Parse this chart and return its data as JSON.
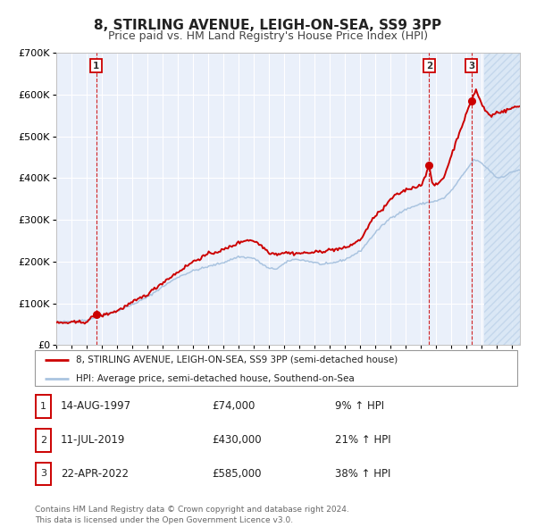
{
  "title": "8, STIRLING AVENUE, LEIGH-ON-SEA, SS9 3PP",
  "subtitle": "Price paid vs. HM Land Registry's House Price Index (HPI)",
  "ylim": [
    0,
    700000
  ],
  "xlim_start": 1995.0,
  "xlim_end": 2025.5,
  "yticks": [
    0,
    100000,
    200000,
    300000,
    400000,
    500000,
    600000,
    700000
  ],
  "ytick_labels": [
    "£0",
    "£100K",
    "£200K",
    "£300K",
    "£400K",
    "£500K",
    "£600K",
    "£700K"
  ],
  "background_color": "#ffffff",
  "plot_bg_color": "#eaf0fa",
  "grid_color": "#ffffff",
  "sale_color": "#cc0000",
  "hpi_color": "#aac4e0",
  "title_fontsize": 11,
  "subtitle_fontsize": 9,
  "tick_fontsize": 7,
  "ytick_fontsize": 8,
  "legend_label_sale": "8, STIRLING AVENUE, LEIGH-ON-SEA, SS9 3PP (semi-detached house)",
  "legend_label_hpi": "HPI: Average price, semi-detached house, Southend-on-Sea",
  "transactions": [
    {
      "label": "1",
      "date": 1997.617,
      "price": 74000,
      "pct": "9%",
      "date_str": "14-AUG-1997"
    },
    {
      "label": "2",
      "date": 2019.525,
      "price": 430000,
      "pct": "21%",
      "date_str": "11-JUL-2019"
    },
    {
      "label": "3",
      "date": 2022.308,
      "price": 585000,
      "pct": "38%",
      "date_str": "22-APR-2022"
    }
  ],
  "footer": "Contains HM Land Registry data © Crown copyright and database right 2024.\nThis data is licensed under the Open Government Licence v3.0.",
  "hpi_base": [
    [
      1995.0,
      55000
    ],
    [
      1996.0,
      57000
    ],
    [
      1997.0,
      60000
    ],
    [
      1998.0,
      72000
    ],
    [
      1999.0,
      82000
    ],
    [
      2000.0,
      97000
    ],
    [
      2001.0,
      115000
    ],
    [
      2002.0,
      140000
    ],
    [
      2003.0,
      163000
    ],
    [
      2004.0,
      178000
    ],
    [
      2005.0,
      188000
    ],
    [
      2006.0,
      198000
    ],
    [
      2007.0,
      212000
    ],
    [
      2008.0,
      208000
    ],
    [
      2008.5,
      195000
    ],
    [
      2009.0,
      183000
    ],
    [
      2009.5,
      183000
    ],
    [
      2010.0,
      195000
    ],
    [
      2010.5,
      205000
    ],
    [
      2011.0,
      205000
    ],
    [
      2012.0,
      198000
    ],
    [
      2012.5,
      193000
    ],
    [
      2013.0,
      195000
    ],
    [
      2014.0,
      205000
    ],
    [
      2015.0,
      225000
    ],
    [
      2016.0,
      270000
    ],
    [
      2016.5,
      288000
    ],
    [
      2017.0,
      305000
    ],
    [
      2017.5,
      315000
    ],
    [
      2018.0,
      325000
    ],
    [
      2018.5,
      332000
    ],
    [
      2019.0,
      338000
    ],
    [
      2019.5,
      342000
    ],
    [
      2020.0,
      345000
    ],
    [
      2020.5,
      352000
    ],
    [
      2021.0,
      370000
    ],
    [
      2021.5,
      395000
    ],
    [
      2022.0,
      420000
    ],
    [
      2022.5,
      445000
    ],
    [
      2023.0,
      435000
    ],
    [
      2023.3,
      425000
    ],
    [
      2023.6,
      415000
    ],
    [
      2024.0,
      400000
    ],
    [
      2024.5,
      405000
    ],
    [
      2025.0,
      415000
    ],
    [
      2025.5,
      420000
    ]
  ],
  "sale_base": [
    [
      1995.0,
      53000
    ],
    [
      1996.0,
      54000
    ],
    [
      1997.0,
      56000
    ],
    [
      1997.617,
      74000
    ],
    [
      1998.0,
      71000
    ],
    [
      1999.0,
      82000
    ],
    [
      2000.0,
      102000
    ],
    [
      2001.0,
      122000
    ],
    [
      2002.0,
      150000
    ],
    [
      2003.0,
      175000
    ],
    [
      2004.0,
      200000
    ],
    [
      2005.0,
      218000
    ],
    [
      2006.0,
      228000
    ],
    [
      2007.0,
      245000
    ],
    [
      2007.5,
      252000
    ],
    [
      2008.0,
      250000
    ],
    [
      2008.5,
      238000
    ],
    [
      2009.0,
      222000
    ],
    [
      2009.5,
      218000
    ],
    [
      2010.0,
      222000
    ],
    [
      2010.5,
      220000
    ],
    [
      2011.0,
      220000
    ],
    [
      2012.0,
      222000
    ],
    [
      2013.0,
      228000
    ],
    [
      2014.0,
      232000
    ],
    [
      2015.0,
      252000
    ],
    [
      2016.0,
      312000
    ],
    [
      2016.5,
      325000
    ],
    [
      2017.0,
      350000
    ],
    [
      2017.5,
      362000
    ],
    [
      2018.0,
      372000
    ],
    [
      2018.5,
      378000
    ],
    [
      2019.0,
      382000
    ],
    [
      2019.525,
      430000
    ],
    [
      2019.7,
      388000
    ],
    [
      2020.0,
      382000
    ],
    [
      2020.5,
      402000
    ],
    [
      2021.0,
      455000
    ],
    [
      2021.5,
      508000
    ],
    [
      2022.0,
      555000
    ],
    [
      2022.308,
      585000
    ],
    [
      2022.6,
      612000
    ],
    [
      2023.0,
      575000
    ],
    [
      2023.3,
      558000
    ],
    [
      2023.6,
      548000
    ],
    [
      2024.0,
      558000
    ],
    [
      2024.5,
      560000
    ],
    [
      2025.0,
      568000
    ],
    [
      2025.5,
      572000
    ]
  ]
}
